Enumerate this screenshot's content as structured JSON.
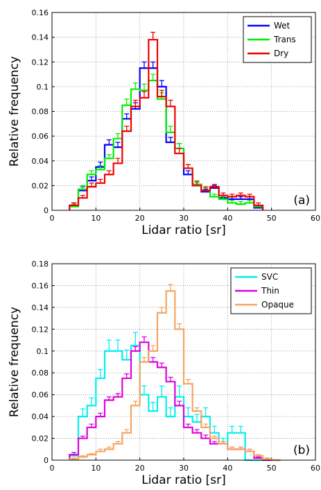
{
  "chart_data": [
    {
      "type": "line",
      "panel_label": "(a)",
      "xlabel": "Lidar ratio [sr]",
      "ylabel": "Relative frequency",
      "xlim": [
        0,
        60
      ],
      "ylim": [
        0,
        0.16
      ],
      "xticks": [
        "0",
        "10",
        "20",
        "30",
        "40",
        "50",
        "60"
      ],
      "yticks": [
        "0",
        "0.02",
        "0.04",
        "0.06",
        "0.08",
        "0.1",
        "0.12",
        "0.14",
        "0.16"
      ],
      "grid": true,
      "legend_position": "top-right",
      "bin_edges": [
        4,
        6,
        8,
        10,
        12,
        14,
        16,
        18,
        20,
        22,
        24,
        26,
        28,
        30,
        32,
        34,
        36,
        38,
        40,
        42,
        44,
        46,
        48
      ],
      "series": [
        {
          "name": "Wet",
          "color": "#0000ff",
          "values": [
            0.004,
            0.016,
            0.024,
            0.035,
            0.053,
            0.051,
            0.074,
            0.082,
            0.115,
            0.115,
            0.1,
            0.055,
            0.05,
            0.029,
            0.02,
            0.015,
            0.018,
            0.01,
            0.009,
            0.009,
            0.009,
            0.002
          ],
          "errors": [
            0.002,
            0.003,
            0.003,
            0.004,
            0.004,
            0.004,
            0.004,
            0.005,
            0.005,
            0.005,
            0.005,
            0.004,
            0.004,
            0.003,
            0.003,
            0.002,
            0.002,
            0.002,
            0.002,
            0.002,
            0.002,
            0.001
          ]
        },
        {
          "name": "Trans",
          "color": "#00ee00",
          "values": [
            0.003,
            0.017,
            0.029,
            0.033,
            0.042,
            0.058,
            0.085,
            0.098,
            0.097,
            0.105,
            0.09,
            0.063,
            0.05,
            0.034,
            0.021,
            0.016,
            0.011,
            0.009,
            0.006,
            0.005,
            0.006,
            0.003
          ],
          "errors": [
            0.002,
            0.003,
            0.003,
            0.003,
            0.003,
            0.004,
            0.005,
            0.005,
            0.005,
            0.005,
            0.005,
            0.005,
            0.004,
            0.003,
            0.003,
            0.002,
            0.002,
            0.002,
            0.002,
            0.002,
            0.002,
            0.001
          ]
        },
        {
          "name": "Dry",
          "color": "#ee0000",
          "values": [
            0.004,
            0.01,
            0.019,
            0.022,
            0.029,
            0.038,
            0.064,
            0.084,
            0.091,
            0.138,
            0.092,
            0.084,
            0.046,
            0.034,
            0.02,
            0.016,
            0.019,
            0.012,
            0.011,
            0.012,
            0.011,
            0.004
          ],
          "errors": [
            0.002,
            0.002,
            0.003,
            0.003,
            0.003,
            0.004,
            0.004,
            0.005,
            0.005,
            0.006,
            0.005,
            0.005,
            0.004,
            0.003,
            0.003,
            0.003,
            0.002,
            0.002,
            0.002,
            0.002,
            0.002,
            0.002
          ]
        }
      ]
    },
    {
      "type": "line",
      "panel_label": "(b)",
      "xlabel": "Lidar ratio [sr]",
      "ylabel": "Relative frequency",
      "xlim": [
        0,
        60
      ],
      "ylim": [
        0,
        0.18
      ],
      "xticks": [
        "0",
        "10",
        "20",
        "30",
        "40",
        "50",
        "60"
      ],
      "yticks": [
        "0",
        "0.02",
        "0.04",
        "0.06",
        "0.08",
        "0.1",
        "0.12",
        "0.14",
        "0.16",
        "0.18"
      ],
      "grid": true,
      "legend_position": "top-right",
      "bin_edges": [
        4,
        6,
        8,
        10,
        12,
        14,
        16,
        18,
        20,
        22,
        24,
        26,
        28,
        30,
        32,
        34,
        36,
        38,
        40,
        42,
        44,
        46,
        48,
        50,
        52
      ],
      "series": [
        {
          "name": "SVC",
          "color": "#00eeee",
          "values": [
            0.004,
            0.04,
            0.05,
            0.075,
            0.1,
            0.1,
            0.092,
            0.105,
            0.06,
            0.045,
            0.058,
            0.04,
            0.058,
            0.04,
            0.035,
            0.04,
            0.025,
            0.015,
            0.025,
            0.025,
            0.0,
            0.0,
            0.0,
            0.0
          ],
          "errors": [
            0.003,
            0.007,
            0.007,
            0.008,
            0.01,
            0.01,
            0.009,
            0.012,
            0.008,
            0.008,
            0.01,
            0.008,
            0.01,
            0.008,
            0.007,
            0.008,
            0.006,
            0.005,
            0.006,
            0.006,
            0.0,
            0.0,
            0.0,
            0.0
          ]
        },
        {
          "name": "Thin",
          "color": "#dd00dd",
          "values": [
            0.005,
            0.02,
            0.03,
            0.04,
            0.055,
            0.058,
            0.075,
            0.1,
            0.108,
            0.09,
            0.085,
            0.072,
            0.05,
            0.03,
            0.025,
            0.02,
            0.015,
            0.015,
            0.01,
            0.01,
            0.008,
            0.002,
            0.0,
            0.0
          ],
          "errors": [
            0.002,
            0.002,
            0.003,
            0.003,
            0.003,
            0.003,
            0.004,
            0.004,
            0.005,
            0.004,
            0.004,
            0.004,
            0.004,
            0.003,
            0.003,
            0.003,
            0.002,
            0.002,
            0.002,
            0.002,
            0.002,
            0.001,
            0.0,
            0.0
          ]
        },
        {
          "name": "Opaque",
          "color": "#f4a460",
          "values": [
            0.001,
            0.003,
            0.005,
            0.008,
            0.01,
            0.015,
            0.025,
            0.05,
            0.09,
            0.1,
            0.135,
            0.155,
            0.12,
            0.07,
            0.045,
            0.03,
            0.02,
            0.015,
            0.01,
            0.01,
            0.008,
            0.004,
            0.001,
            0.0
          ],
          "errors": [
            0.001,
            0.001,
            0.001,
            0.002,
            0.002,
            0.002,
            0.003,
            0.004,
            0.004,
            0.005,
            0.005,
            0.006,
            0.005,
            0.004,
            0.003,
            0.003,
            0.002,
            0.002,
            0.002,
            0.002,
            0.002,
            0.001,
            0.001,
            0.0
          ]
        }
      ]
    }
  ]
}
